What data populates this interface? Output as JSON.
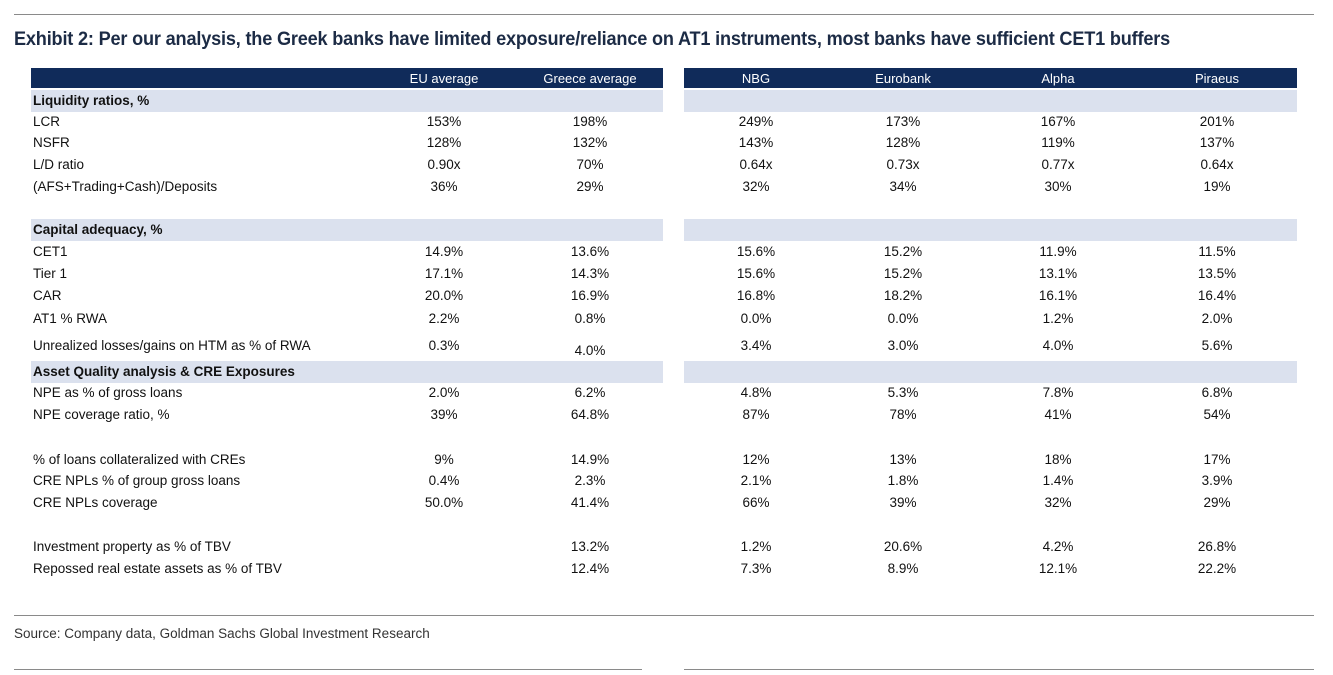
{
  "title": "Exhibit 2: Per our analysis, the Greek banks have limited exposure/reliance on AT1 instruments, most banks have sufficient CET1 buffers",
  "header": {
    "columns": [
      "EU average",
      "Greece average",
      "NBG",
      "Eurobank",
      "Alpha",
      "Piraeus"
    ]
  },
  "sections": [
    {
      "title": "Liquidity ratios, %",
      "rows": [
        {
          "label": "LCR",
          "values": [
            "153%",
            "198%",
            "249%",
            "173%",
            "167%",
            "201%"
          ]
        },
        {
          "label": "NSFR",
          "values": [
            "128%",
            "132%",
            "143%",
            "128%",
            "119%",
            "137%"
          ]
        },
        {
          "label": "L/D ratio",
          "values": [
            "0.90x",
            "70%",
            "0.64x",
            "0.73x",
            "0.77x",
            "0.64x"
          ]
        },
        {
          "label": "(AFS+Trading+Cash)/Deposits",
          "values": [
            "36%",
            "29%",
            "32%",
            "34%",
            "30%",
            "19%"
          ]
        }
      ]
    },
    {
      "title": "Capital adequacy, %",
      "rows": [
        {
          "label": "CET1",
          "values": [
            "14.9%",
            "13.6%",
            "15.6%",
            "15.2%",
            "11.9%",
            "11.5%"
          ]
        },
        {
          "label": "Tier 1",
          "values": [
            "17.1%",
            "14.3%",
            "15.6%",
            "15.2%",
            "13.1%",
            "13.5%"
          ]
        },
        {
          "label": "CAR",
          "values": [
            "20.0%",
            "16.9%",
            "16.8%",
            "18.2%",
            "16.1%",
            "16.4%"
          ]
        },
        {
          "label": "AT1 % RWA",
          "values": [
            "2.2%",
            "0.8%",
            "0.0%",
            "0.0%",
            "1.2%",
            "2.0%"
          ]
        },
        {
          "label": "Unrealized losses/gains on HTM as % of RWA",
          "values": [
            "0.3%",
            "4.0%",
            "3.4%",
            "3.0%",
            "4.0%",
            "5.6%"
          ]
        }
      ]
    },
    {
      "title": "Asset Quality analysis & CRE Exposures",
      "rows": [
        {
          "label": "NPE as % of gross loans",
          "values": [
            "2.0%",
            "6.2%",
            "4.8%",
            "5.3%",
            "7.8%",
            "6.8%"
          ]
        },
        {
          "label": "NPE coverage ratio, %",
          "values": [
            "39%",
            "64.8%",
            "87%",
            "78%",
            "41%",
            "54%"
          ]
        },
        {
          "label": "% of loans collateralized with CREs",
          "values": [
            "9%",
            "14.9%",
            "12%",
            "13%",
            "18%",
            "17%"
          ]
        },
        {
          "label": "CRE NPLs % of group gross loans",
          "values": [
            "0.4%",
            "2.3%",
            "2.1%",
            "1.8%",
            "1.4%",
            "3.9%"
          ]
        },
        {
          "label": "CRE NPLs coverage",
          "values": [
            "50.0%",
            "41.4%",
            "66%",
            "39%",
            "32%",
            "29%"
          ]
        },
        {
          "label": "Investment property as % of TBV",
          "values": [
            "",
            "13.2%",
            "1.2%",
            "20.6%",
            "4.2%",
            "26.8%"
          ]
        },
        {
          "label": "Repossed real estate assets as % of TBV",
          "values": [
            "",
            "12.4%",
            "7.3%",
            "8.9%",
            "12.1%",
            "22.2%"
          ]
        }
      ]
    }
  ],
  "source": "Source: Company data, Goldman Sachs Global Investment Research",
  "colors": {
    "header_bg": "#102b5a",
    "section_bg": "#dbe1ee",
    "title_text": "#1c2b45"
  }
}
